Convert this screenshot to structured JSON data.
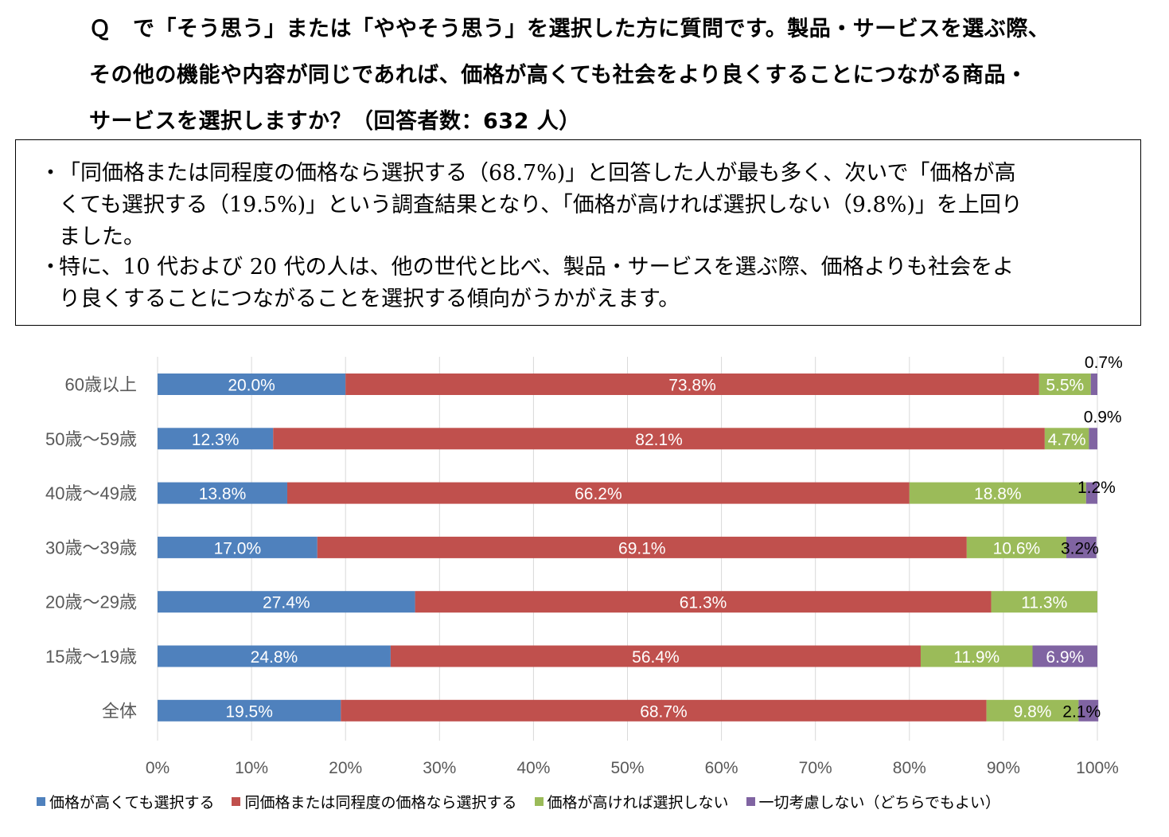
{
  "question": {
    "lines": [
      "Ｑ　で「そう思う」または「ややそう思う」を選択した方に質問です。製品・サービスを選ぶ際、",
      "その他の機能や内容が同じであれば、価格が高くても社会をより良くすることにつながる商品・",
      "サービスを選択しますか？（回答者数：632 人）"
    ]
  },
  "summary": {
    "bullet_mark": "・",
    "bullets": [
      {
        "lines": [
          "「同価格または同程度の価格なら選択する（68.7%)」と回答した人が最も多く、次いで「価格が高",
          "くても選択する（19.5%)」という調査結果となり、「価格が高ければ選択しない（9.8%)」を上回り",
          "ました。"
        ]
      },
      {
        "lines": [
          "特に、10 代および 20 代の人は、他の世代と比べ、製品・サービスを選ぶ際、価格よりも社会をよ",
          "り良くすることにつながることを選択する傾向がうかがえます。"
        ]
      }
    ]
  },
  "chart_data": {
    "type": "bar",
    "orientation": "horizontal",
    "stacked": true,
    "categories": [
      "60歳以上",
      "50歳～59歳",
      "40歳～49歳",
      "30歳～39歳",
      "20歳～29歳",
      "15歳～19歳",
      "全体"
    ],
    "series": [
      {
        "name": "価格が高くても選択する",
        "color": "#4F81BD",
        "values": [
          20.0,
          12.3,
          13.8,
          17.0,
          27.4,
          24.8,
          19.5
        ]
      },
      {
        "name": "同価格または同程度の価格なら選択する",
        "color": "#C0504D",
        "values": [
          73.8,
          82.1,
          66.2,
          69.1,
          61.3,
          56.4,
          68.7
        ]
      },
      {
        "name": "価格が高ければ選択しない",
        "color": "#9BBB59",
        "values": [
          5.5,
          4.7,
          18.8,
          10.6,
          11.3,
          11.9,
          9.8
        ]
      },
      {
        "name": "一切考慮しない（どちらでもよい）",
        "color": "#8064A2",
        "values": [
          0.7,
          0.9,
          1.2,
          3.2,
          0.0,
          6.9,
          2.1
        ]
      }
    ],
    "xlim": [
      0,
      100
    ],
    "xticks": [
      "0%",
      "10%",
      "20%",
      "30%",
      "40%",
      "50%",
      "60%",
      "70%",
      "80%",
      "90%",
      "100%"
    ],
    "value_suffix": "%",
    "grid": true,
    "legend": "bottom"
  },
  "colors": {
    "grid": "#D9D9D9",
    "label_inside": "#ffffff",
    "label_outside": "#000000"
  }
}
